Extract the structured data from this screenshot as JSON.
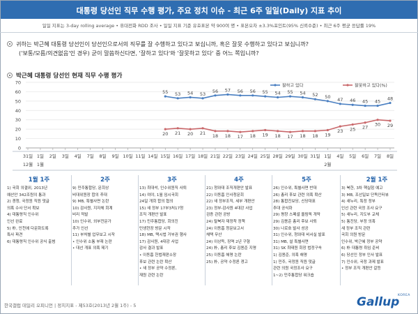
{
  "header": {
    "title": "대통령 당선인 직무 수행 평가, 주요 정치 이슈 - 최근 6주 일일(Daily) 지표 추이",
    "subtitle": "일일 지표는 3-day rolling average • 휴대전화 RDD 조사 • 일일 지표 기준 유효표본 약 900여 명 • 표본오차 ±3.3%포인트(95% 신뢰수준) • 최근 6주 평균 응답률 19%"
  },
  "question": {
    "line1": "귀하는 박근혜 대통령 당선인이 당선인으로서의 직무를 잘 수행하고 있다고 보십니까, 혹은 잘못 수행하고 있다고 보십니까?",
    "line2": "('보통/모름/의견없음'인 경우) 굳이 말씀하신다면, '잘하고 있다'와 '잘못하고 있다' 중 어느 쪽입니까?"
  },
  "section_title": "박근혜 대통령 당선인 현재 직무 수행 평가",
  "chart_data": {
    "type": "line",
    "y_ticks": [
      "0",
      "10",
      "20",
      "30",
      "40",
      "50",
      "60",
      "70"
    ],
    "ylim": [
      0,
      70
    ],
    "grid": true,
    "legend_position": "top-right",
    "x_labels": [
      "31일",
      "1일",
      "2일",
      "3일",
      "4일",
      "7일",
      "8일",
      "9일",
      "10일",
      "11일",
      "14일",
      "15일",
      "16일",
      "17일",
      "18일",
      "21일",
      "22일",
      "23일",
      "24일",
      "25일",
      "28일",
      "29일",
      "30일",
      "31일",
      "1일",
      "4일",
      "5일",
      "6일",
      "7일",
      "8일"
    ],
    "month_labels": [
      {
        "text": "12월",
        "index": 0
      },
      {
        "text": "1월",
        "index": 1
      },
      {
        "text": "2월",
        "index": 24
      }
    ],
    "series": [
      {
        "name": "잘하고 있다",
        "color": "#4a7fc1",
        "start_index": 11,
        "values": [
          55,
          53,
          54,
          53,
          56,
          57,
          56,
          56,
          55,
          54,
          55,
          54,
          52,
          50,
          47,
          46,
          45,
          45,
          48
        ],
        "labels": [
          "55",
          "53",
          "54",
          "53",
          "56",
          "57",
          "56",
          "56",
          "55",
          "54",
          "55",
          "54",
          "52",
          "50",
          "47",
          "46",
          "45",
          "45",
          "48"
        ]
      },
      {
        "name": "잘못하고 있다(%)",
        "color": "#c9676a",
        "start_index": 11,
        "values": [
          20,
          21,
          20,
          21,
          18,
          18,
          17,
          18,
          19,
          18,
          17,
          18,
          18,
          19,
          23,
          25,
          27,
          30,
          29
        ],
        "labels": [
          "20",
          "21",
          "20",
          "21",
          "18",
          "18",
          "17",
          "18",
          "19",
          "18",
          "17",
          "18",
          "18",
          "19",
          "23",
          "25",
          "27",
          "30",
          "29"
        ]
      }
    ]
  },
  "weeks": [
    {
      "label": "1월 1주",
      "items": [
        "1) 국회 의결위, 2013년",
        "예산안 342조원의 통과",
        "2) 경청, 국정원 직원 댓글",
        "의혹 수사 단서 확보",
        "4) 대통령직 인수위",
        "인선 완료",
        "5) 朴, 인천에 다문화도록",
        "특사 파견",
        "6) 대통령직 인수위 공식 출범"
      ]
    },
    {
      "label": "2주",
      "items": [
        "9) 민주통합당, 문희상",
        "비대위원장 합의 추대",
        "9) MB, 특별사면 논란",
        "10) 감사원, 지자체 회계",
        "비리 적발",
        "10) 인수위, 외부전문가",
        "추가 인선",
        "11) 부처별 업무보고 시작",
        "• 인수위 소통 부재 논란",
        "• 대선 개표 의혹 제기"
      ]
    },
    {
      "label": "3주",
      "items": [
        "13) 최대석, 인수위원직 사퇴",
        "14) 여야, 1월 임시국회",
        "24일 개회 합의 협의",
        "15) 새 정부 17부3처17청",
        "조직 개편안 발표",
        "17) 민주통합당, 회의진",
        "민생현장 방문 시작",
        "18) MB, 택시법 거부권 행사",
        "17) 감사원, 4대강 사업",
        "감사 결과 발표",
        "• 이동흡 헌법재판소장",
        "후보 관련 논란 확산",
        "• 새 정부 공약 수정론,",
        "재원 관련 논란"
      ]
    },
    {
      "label": "4주",
      "items": [
        "21) 청와대 조직개편안 발표",
        "22) 이동흡 인사청문회",
        "22) 새 정부조직, 세부 개편안",
        "23) 정부-감사원 4대강 사업",
        "검증 관련 공방",
        "24) 탈북자 재정착 정책",
        "24) 이동흡 청문보고서",
        "채택 무산",
        "24) 이상득, 징역 2년 구형",
        "24) 朴, 총리 후보 김용준 지명",
        "25) 이동흡 해명 논란",
        "25) 朴, 공약 수정론 경고"
      ]
    },
    {
      "label": "5주",
      "items": [
        "26) 인수위, 특별사면 반대",
        "26) 총리 후보 관련 의혹 확산",
        "28) 통합진보당, 신당대표",
        "추대 공식화",
        "29) 평창 스페셜 올림픽 개막",
        "29) 김용준 총리 후보 사퇴",
        "30) 나로호 발사 성공",
        "31) 인수위, 청와대 비서실 발표",
        "31) MB, 설 특별사면",
        "31) SK 최태원 회장 법정구속",
        "1) 김용준, 의혹 해명",
        "1) 민주, 국정원 직원 댓글",
        "관련 의원 국정조사 요구",
        "1~2) 민주통합당 워크숍"
      ]
    },
    {
      "label": "2월 1주",
      "items": [
        "3) 북한, 3차 핵실험 예고",
        "3) MB, 조선일보 단독인터뷰",
        "4) 새누리, 특정 정부",
        "인선 관련 국정 조사 요구",
        "5) 새누리, 지도부 교체",
        "5) 통진당, 부정 의혹",
        "새 정부 조직 관련",
        "국회 의원 방문",
        "인수위, 박근혜 정부 공약",
        "6) 朴 대통령 취임 준비",
        "6) 당선인 정부 인사 발표",
        "7) 인수위, 국정 과제 발표",
        "• 정부 조직 개편안 갈등"
      ]
    }
  ],
  "footer": {
    "source": "한국갤럽 데일리 오피니언 | 정치지표 - 제53호(2013년 2월 1주) - 5",
    "logo": "Gallup",
    "logo_sub": "KOREA"
  }
}
